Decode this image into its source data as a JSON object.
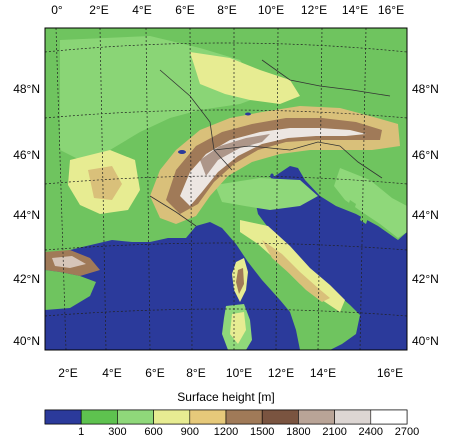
{
  "map": {
    "top_lon_ticks": [
      "0°",
      "2°E",
      "4°E",
      "6°E",
      "8°E",
      "10°E",
      "12°E",
      "14°E",
      "16°E"
    ],
    "bottom_lon_ticks": [
      "2°E",
      "4°E",
      "6°E",
      "8°E",
      "10°E",
      "12°E",
      "14°E",
      "16°E"
    ],
    "lat_ticks": [
      "48°N",
      "46°N",
      "44°N",
      "42°N",
      "40°N"
    ],
    "colors": {
      "sea": "#2b3a9b",
      "low": "#6fc45f",
      "mid": "#8fd87a",
      "yellow": "#e7ec92",
      "tan": "#d9c07a",
      "brown": "#a07a58",
      "dark": "#7a5440",
      "rock": "#b9a497",
      "snow": "#ece6e2"
    }
  },
  "legend": {
    "title": "Surface height [m]",
    "labels": [
      "1",
      "300",
      "600",
      "900",
      "1200",
      "1500",
      "1800",
      "2100",
      "2400",
      "2700"
    ],
    "colors": [
      "#2b3a9b",
      "#5ec24f",
      "#8fd87a",
      "#e7ec92",
      "#e6c97a",
      "#a07a58",
      "#7a5440",
      "#b9a497",
      "#ddd6d3",
      "#ffffff"
    ]
  }
}
